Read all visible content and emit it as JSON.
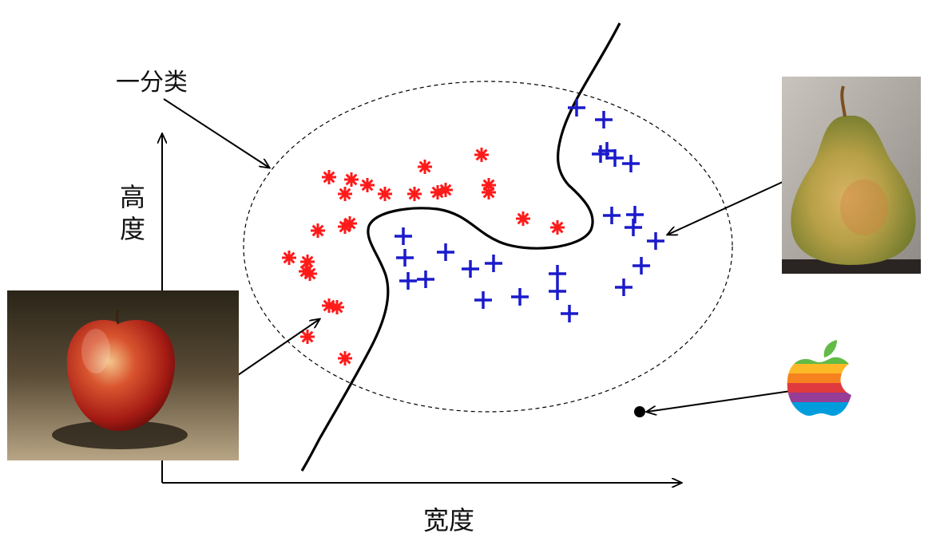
{
  "labels": {
    "one_class": "一分类",
    "y_axis": "高度",
    "x_axis": "宽度"
  },
  "pictures": {
    "left": "apple-photo",
    "right": "pear-photo",
    "bottom_right": "apple-rainbow-logo"
  },
  "classes": {
    "apple": {
      "marker": "asterisk",
      "color": "#ff1a1a"
    },
    "pear": {
      "marker": "plus",
      "color": "#1a1acc"
    },
    "outlier": {
      "marker": "dot",
      "color": "#000000"
    }
  }
}
